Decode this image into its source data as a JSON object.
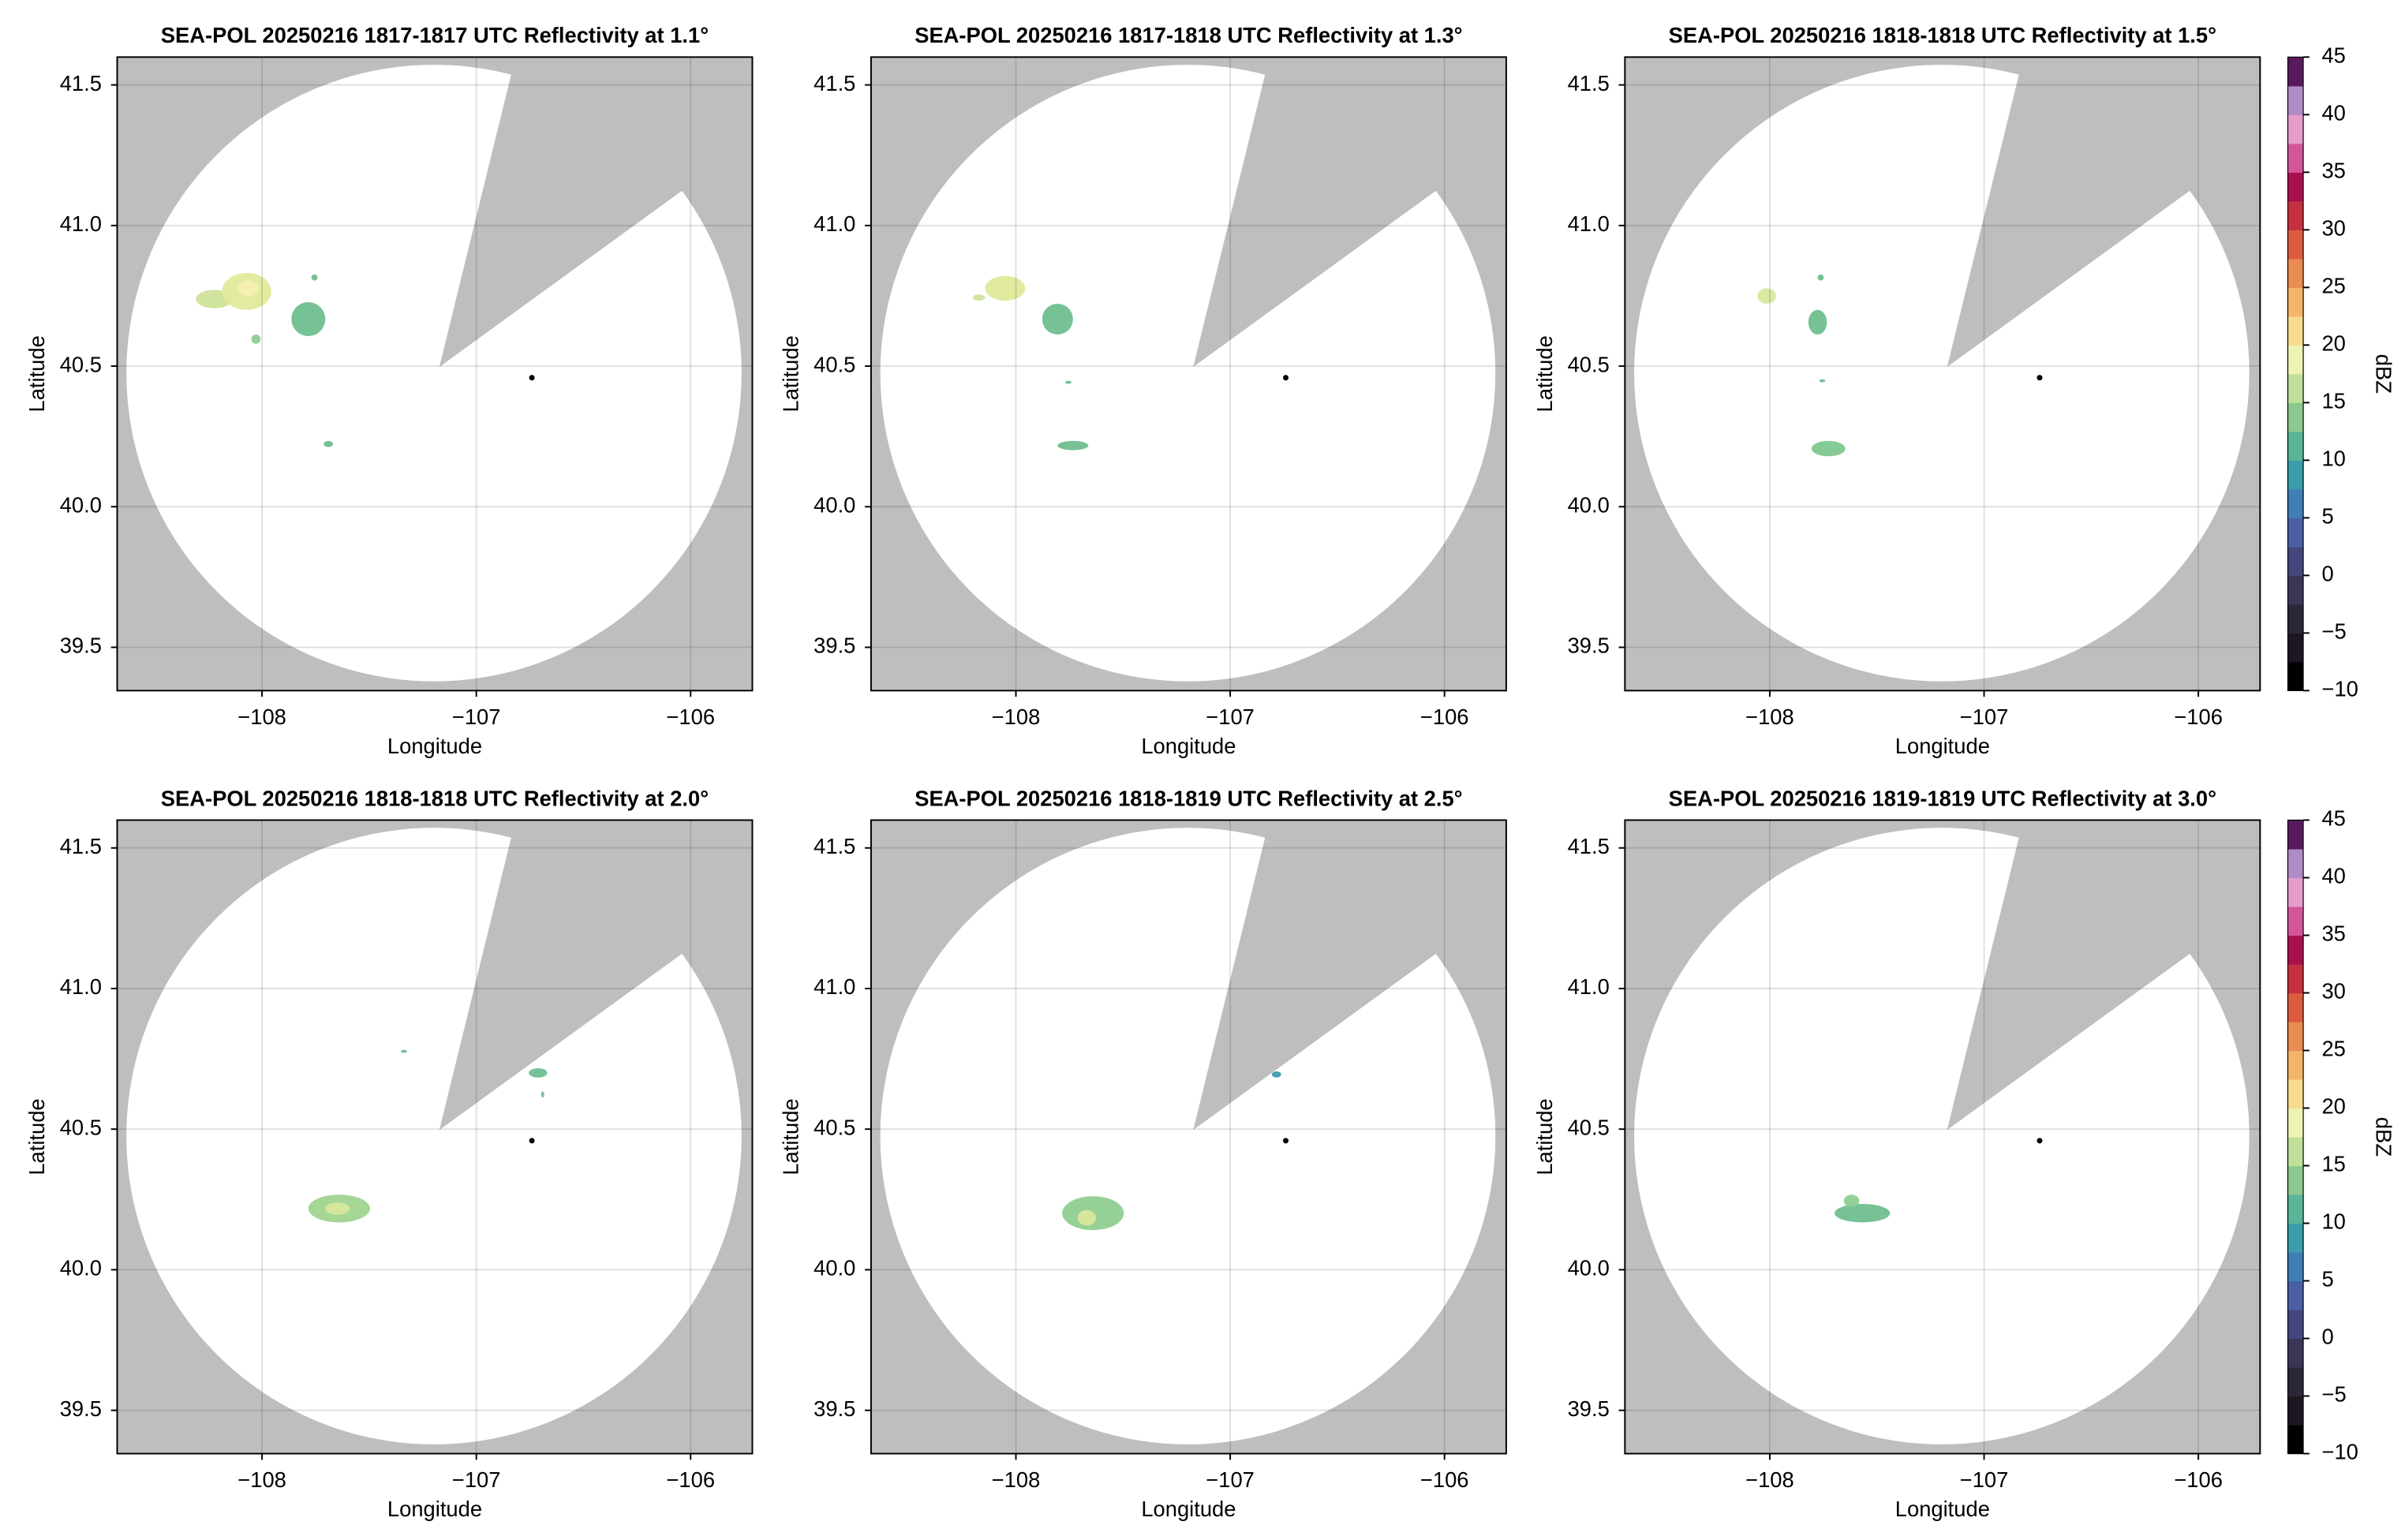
{
  "chart_data": [
    {
      "type": "map",
      "title": "SEA-POL 20250216 1817-1817 UTC Reflectivity at 1.1°",
      "xlabel": "Longitude",
      "ylabel": "Latitude",
      "xlim": [
        -108.676,
        -105.712
      ],
      "ylim": [
        39.346,
        41.599
      ],
      "xticks": [
        {
          "value": -108,
          "label": "−108"
        },
        {
          "value": -107,
          "label": "−107"
        },
        {
          "value": -106,
          "label": "−106"
        }
      ],
      "yticks": [
        39.5,
        {
          "value": 40,
          "label": "40.0"
        },
        40.5,
        {
          "value": 41,
          "label": "41.0"
        },
        41.5
      ],
      "grid": true
    },
    {
      "type": "map",
      "title": "SEA-POL 20250216 1817-1818 UTC Reflectivity at 1.3°",
      "xlabel": "Longitude",
      "ylabel": "Latitude",
      "xlim": [
        -108.676,
        -105.712
      ],
      "ylim": [
        39.346,
        41.599
      ],
      "xticks": [
        {
          "value": -108,
          "label": "−108"
        },
        {
          "value": -107,
          "label": "−107"
        },
        {
          "value": -106,
          "label": "−106"
        }
      ],
      "yticks": [
        39.5,
        {
          "value": 40,
          "label": "40.0"
        },
        40.5,
        {
          "value": 41,
          "label": "41.0"
        },
        41.5
      ],
      "grid": true
    },
    {
      "type": "map",
      "title": "SEA-POL 20250216 1818-1818 UTC Reflectivity at 1.5°",
      "xlabel": "Longitude",
      "ylabel": "Latitude",
      "xlim": [
        -108.676,
        -105.712
      ],
      "ylim": [
        39.346,
        41.599
      ],
      "xticks": [
        {
          "value": -108,
          "label": "−108"
        },
        {
          "value": -107,
          "label": "−107"
        },
        {
          "value": -106,
          "label": "−106"
        }
      ],
      "yticks": [
        39.5,
        {
          "value": 40,
          "label": "40.0"
        },
        40.5,
        {
          "value": 41,
          "label": "41.0"
        },
        41.5
      ],
      "grid": true,
      "colorbar": {
        "label": "dBZ",
        "limits": [
          -10,
          45
        ],
        "ticks": [
          {
            "value": -10,
            "label": "−10"
          },
          {
            "value": -5,
            "label": "−5"
          },
          0,
          5,
          10,
          15,
          20,
          25,
          30,
          35,
          40,
          45
        ],
        "colors": [
          "#000000",
          "#1c1722",
          "#2c2738",
          "#3a3657",
          "#45477c",
          "#4a5fa6",
          "#3f7fb5",
          "#3c9dad",
          "#5ab598",
          "#8bc98e",
          "#bfe09a",
          "#eef2b2",
          "#f7dc8e",
          "#f2b56a",
          "#ea8b52",
          "#dc5c40",
          "#c4303f",
          "#a8104c",
          "#d3569a",
          "#e59ccb",
          "#b08cc4",
          "#5a1a5e"
        ]
      }
    },
    {
      "type": "map",
      "title": "SEA-POL 20250216 1818-1818 UTC Reflectivity at 2.0°",
      "xlabel": "Longitude",
      "ylabel": "Latitude",
      "xlim": [
        -108.676,
        -105.712
      ],
      "ylim": [
        39.346,
        41.599
      ],
      "xticks": [
        {
          "value": -108,
          "label": "−108"
        },
        {
          "value": -107,
          "label": "−107"
        },
        {
          "value": -106,
          "label": "−106"
        }
      ],
      "yticks": [
        39.5,
        {
          "value": 40,
          "label": "40.0"
        },
        40.5,
        {
          "value": 41,
          "label": "41.0"
        },
        41.5
      ],
      "grid": true
    },
    {
      "type": "map",
      "title": "SEA-POL 20250216 1818-1819 UTC Reflectivity at 2.5°",
      "xlabel": "Longitude",
      "ylabel": "Latitude",
      "xlim": [
        -108.676,
        -105.712
      ],
      "ylim": [
        39.346,
        41.599
      ],
      "xticks": [
        {
          "value": -108,
          "label": "−108"
        },
        {
          "value": -107,
          "label": "−107"
        },
        {
          "value": -106,
          "label": "−106"
        }
      ],
      "yticks": [
        39.5,
        {
          "value": 40,
          "label": "40.0"
        },
        40.5,
        {
          "value": 41,
          "label": "41.0"
        },
        41.5
      ],
      "grid": true
    },
    {
      "type": "map",
      "title": "SEA-POL 20250216 1819-1819 UTC Reflectivity at 3.0°",
      "xlabel": "Longitude",
      "ylabel": "Latitude",
      "xlim": [
        -108.676,
        -105.712
      ],
      "ylim": [
        39.346,
        41.599
      ],
      "xticks": [
        {
          "value": -108,
          "label": "−108"
        },
        {
          "value": -107,
          "label": "−107"
        },
        {
          "value": -106,
          "label": "−106"
        }
      ],
      "yticks": [
        39.5,
        {
          "value": 40,
          "label": "40.0"
        },
        40.5,
        {
          "value": 41,
          "label": "41.0"
        },
        41.5
      ],
      "grid": true,
      "colorbar": {
        "label": "dBZ",
        "limits": [
          -10,
          45
        ],
        "ticks": [
          {
            "value": -10,
            "label": "−10"
          },
          {
            "value": -5,
            "label": "−5"
          },
          0,
          5,
          10,
          15,
          20,
          25,
          30,
          35,
          40,
          45
        ],
        "colors": [
          "#000000",
          "#1c1722",
          "#2c2738",
          "#3a3657",
          "#45477c",
          "#4a5fa6",
          "#3f7fb5",
          "#3c9dad",
          "#5ab598",
          "#8bc98e",
          "#bfe09a",
          "#eef2b2",
          "#f7dc8e",
          "#f2b56a",
          "#ea8b52",
          "#dc5c40",
          "#c4303f",
          "#a8104c",
          "#d3569a",
          "#e59ccb",
          "#b08cc4",
          "#5a1a5e"
        ]
      }
    }
  ]
}
